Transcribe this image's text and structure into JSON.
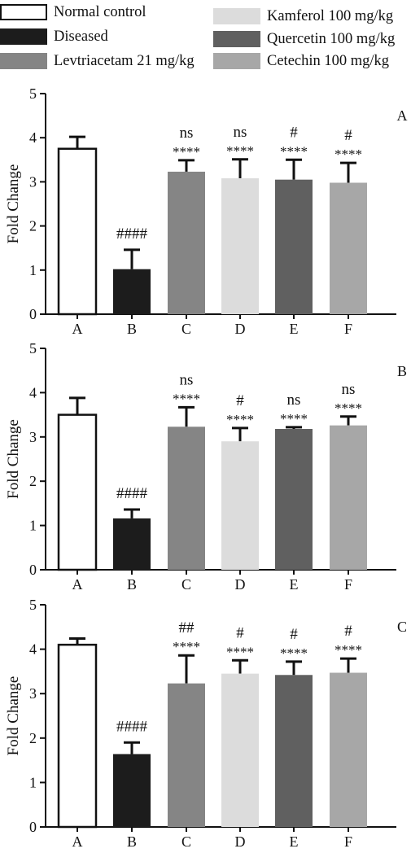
{
  "legend": {
    "items": [
      {
        "label": "Normal control",
        "color": "#ffffff"
      },
      {
        "label": "Diseased",
        "color": "#1c1c1c"
      },
      {
        "label": "Levtriacetam 21 mg/kg",
        "color": "#858585"
      },
      {
        "label": "Kamferol 100 mg/kg",
        "color": "#dcdcdc"
      },
      {
        "label": "Quercetin 100 mg/kg",
        "color": "#606060"
      },
      {
        "label": "Cetechin 100 mg/kg",
        "color": "#a7a7a7"
      }
    ]
  },
  "chart_data": [
    {
      "type": "bar",
      "panel_label": "A",
      "ylabel": "Fold Change",
      "ylim": [
        0,
        5
      ],
      "yticks": [
        0,
        1,
        2,
        3,
        4,
        5
      ],
      "categories": [
        "A",
        "B",
        "C",
        "D",
        "E",
        "F"
      ],
      "values": [
        3.75,
        1.02,
        3.23,
        3.08,
        3.05,
        2.98
      ],
      "errors": [
        0.27,
        0.44,
        0.26,
        0.43,
        0.45,
        0.45
      ],
      "sig_hash": [
        "",
        "####",
        "ns",
        "ns",
        "#",
        "#"
      ],
      "sig_stars": [
        "",
        "",
        "****",
        "****",
        "****",
        "****"
      ]
    },
    {
      "type": "bar",
      "panel_label": "B",
      "ylabel": "Fold Change",
      "ylim": [
        0,
        5
      ],
      "yticks": [
        0,
        1,
        2,
        3,
        4,
        5
      ],
      "categories": [
        "A",
        "B",
        "C",
        "D",
        "E",
        "F"
      ],
      "values": [
        3.5,
        1.16,
        3.23,
        2.9,
        3.18,
        3.26
      ],
      "errors": [
        0.38,
        0.2,
        0.44,
        0.3,
        0.04,
        0.2
      ],
      "sig_hash": [
        "",
        "####",
        "ns",
        "#",
        "ns",
        "ns"
      ],
      "sig_stars": [
        "",
        "",
        "****",
        "****",
        "****",
        "****"
      ]
    },
    {
      "type": "bar",
      "panel_label": "C",
      "ylabel": "Fold Change",
      "ylim": [
        0,
        5
      ],
      "yticks": [
        0,
        1,
        2,
        3,
        4,
        5
      ],
      "categories": [
        "A",
        "B",
        "C",
        "D",
        "E",
        "F"
      ],
      "values": [
        4.1,
        1.64,
        3.23,
        3.45,
        3.42,
        3.47
      ],
      "errors": [
        0.14,
        0.26,
        0.63,
        0.3,
        0.3,
        0.32
      ],
      "sig_hash": [
        "",
        "####",
        "##",
        "#",
        "#",
        "#"
      ],
      "sig_stars": [
        "",
        "",
        "****",
        "****",
        "****",
        "****"
      ]
    }
  ]
}
